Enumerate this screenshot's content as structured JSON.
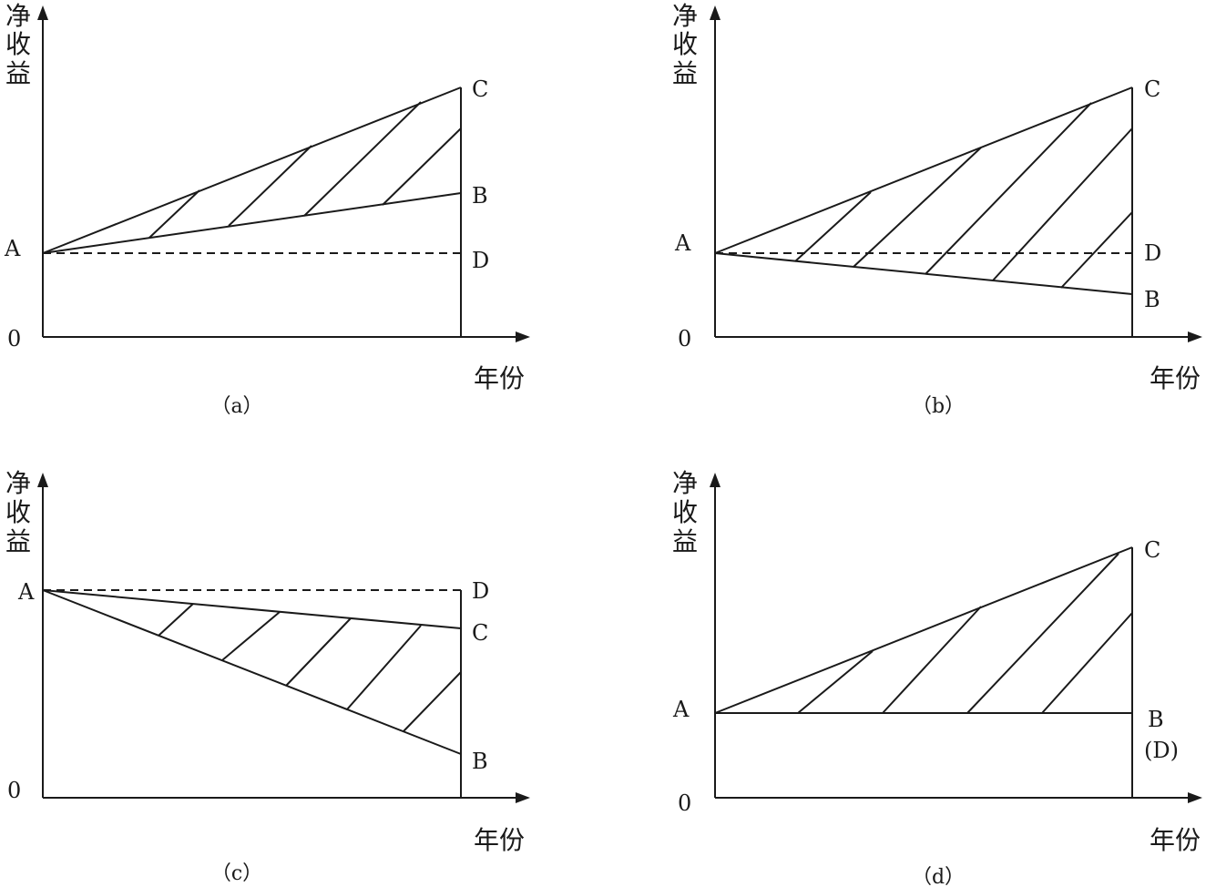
{
  "y_axis_label": [
    "净",
    "收",
    "益"
  ],
  "x_axis_label": "年份",
  "origin_label": "0",
  "panels": [
    {
      "caption": "（a）",
      "points": {
        "A": "A",
        "B": "B",
        "C": "C",
        "D": "D"
      }
    },
    {
      "caption": "（b）",
      "points": {
        "A": "A",
        "B": "B",
        "C": "C",
        "D": "D"
      }
    },
    {
      "caption": "（c）",
      "points": {
        "A": "A",
        "B": "B",
        "C": "C",
        "D": "D"
      }
    },
    {
      "caption": "（d）",
      "points": {
        "A": "A",
        "B": "B",
        "C": "C",
        "D": "(D)"
      }
    }
  ]
}
